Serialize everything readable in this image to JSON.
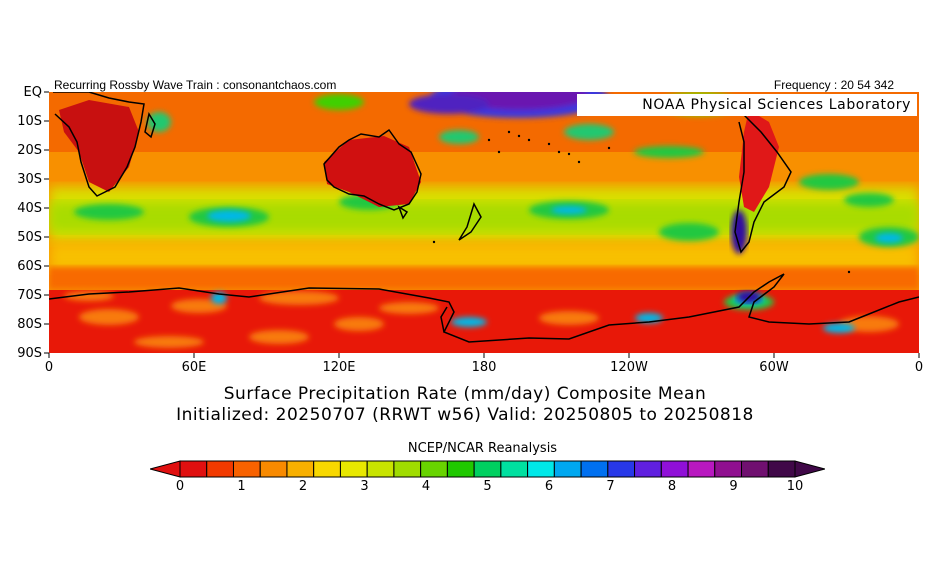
{
  "header": {
    "left": "Recurring Rossby Wave Train : consonantchaos.com",
    "right": "Frequency : 20 54 342"
  },
  "badge": "NOAA Physical Sciences Laboratory",
  "lat_labels": [
    "EQ",
    "10S",
    "20S",
    "30S",
    "40S",
    "50S",
    "60S",
    "70S",
    "80S",
    "90S"
  ],
  "lon_labels": [
    "0",
    "60E",
    "120E",
    "180",
    "120W",
    "60W",
    "0"
  ],
  "title_line1": "Surface Precipitation Rate (mm/day) Composite Mean",
  "title_line2": "Initialized: 20250707 (RRWT w56) Valid: 20250805 to 20250818",
  "source": "NCEP/NCAR Reanalysis",
  "colorbar": {
    "labels": [
      "0",
      "1",
      "2",
      "3",
      "4",
      "5",
      "6",
      "7",
      "8",
      "9",
      "10"
    ],
    "colors": [
      "#e01010",
      "#f23a00",
      "#f86200",
      "#f88a00",
      "#f8b000",
      "#f8d800",
      "#e8e800",
      "#c8e400",
      "#a0dc00",
      "#68d400",
      "#20c800",
      "#00d060",
      "#00e0a0",
      "#00e8e8",
      "#00a8f0",
      "#0070f0",
      "#2838e8",
      "#6020e0",
      "#9010d8",
      "#b818c0",
      "#901090",
      "#701070",
      "#400848"
    ],
    "min_color": "#e01010",
    "max_color": "#400848"
  }
}
